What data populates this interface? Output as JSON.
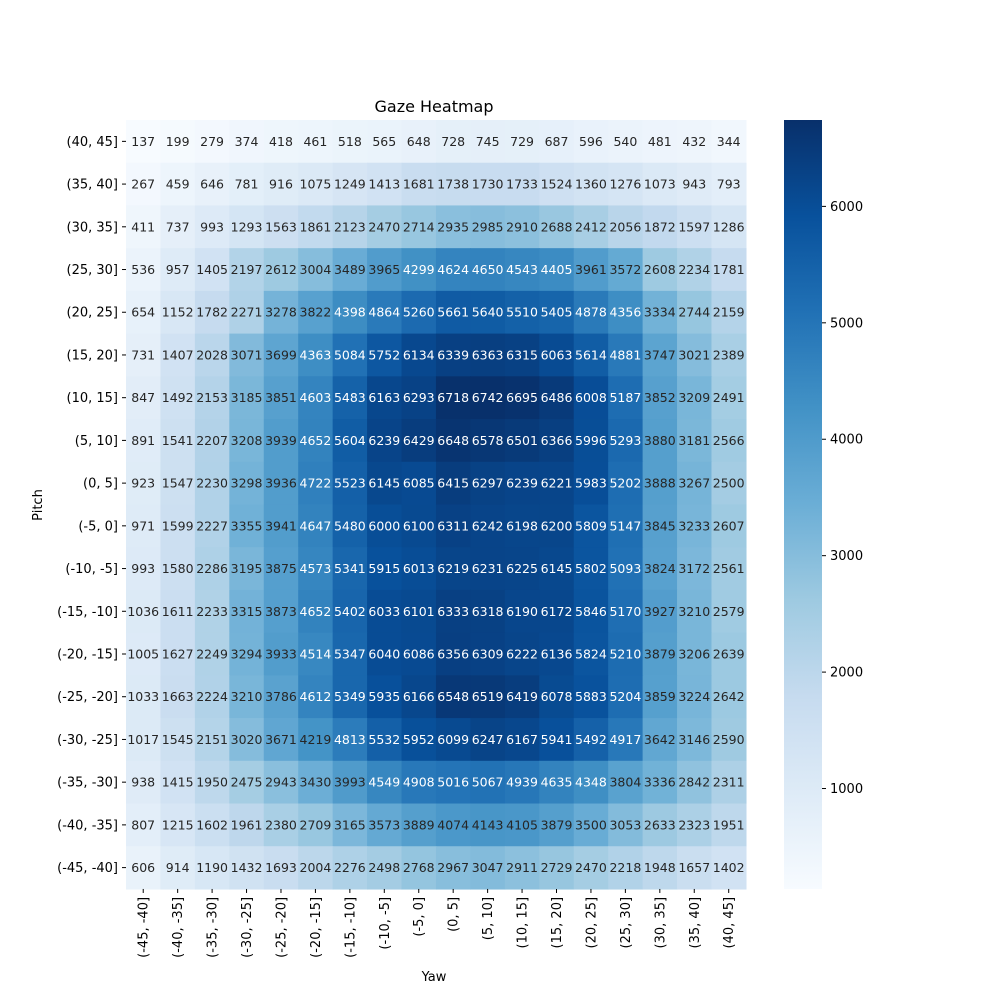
{
  "chart_data": {
    "type": "heatmap",
    "title": "Gaze Heatmap",
    "xlabel": "Yaw",
    "ylabel": "Pitch",
    "x_categories": [
      "(-45, -40]",
      "(-40, -35]",
      "(-35, -30]",
      "(-30, -25]",
      "(-25, -20]",
      "(-20, -15]",
      "(-15, -10]",
      "(-10, -5]",
      "(-5, 0]",
      "(0, 5]",
      "(5, 10]",
      "(10, 15]",
      "(15, 20]",
      "(20, 25]",
      "(25, 30]",
      "(30, 35]",
      "(35, 40]",
      "(40, 45]"
    ],
    "y_categories": [
      "(40, 45]",
      "(35, 40]",
      "(30, 35]",
      "(25, 30]",
      "(20, 25]",
      "(15, 20]",
      "(10, 15]",
      "(5, 10]",
      "(0, 5]",
      "(-5, 0]",
      "(-10, -5]",
      "(-15, -10]",
      "(-20, -15]",
      "(-25, -20]",
      "(-30, -25]",
      "(-35, -30]",
      "(-40, -35]",
      "(-45, -40]"
    ],
    "values": [
      [
        137,
        199,
        279,
        374,
        418,
        461,
        518,
        565,
        648,
        728,
        745,
        729,
        687,
        596,
        540,
        481,
        432,
        344
      ],
      [
        267,
        459,
        646,
        781,
        916,
        1075,
        1249,
        1413,
        1681,
        1738,
        1730,
        1733,
        1524,
        1360,
        1276,
        1073,
        943,
        793
      ],
      [
        411,
        737,
        993,
        1293,
        1563,
        1861,
        2123,
        2470,
        2714,
        2935,
        2985,
        2910,
        2688,
        2412,
        2056,
        1872,
        1597,
        1286
      ],
      [
        536,
        957,
        1405,
        2197,
        2612,
        3004,
        3489,
        3965,
        4299,
        4624,
        4650,
        4543,
        4405,
        3961,
        3572,
        2608,
        2234,
        1781
      ],
      [
        654,
        1152,
        1782,
        2271,
        3278,
        3822,
        4398,
        4864,
        5260,
        5661,
        5640,
        5510,
        5405,
        4878,
        4356,
        3334,
        2744,
        2159
      ],
      [
        731,
        1407,
        2028,
        3071,
        3699,
        4363,
        5084,
        5752,
        6134,
        6339,
        6363,
        6315,
        6063,
        5614,
        4881,
        3747,
        3021,
        2389
      ],
      [
        847,
        1492,
        2153,
        3185,
        3851,
        4603,
        5483,
        6163,
        6293,
        6718,
        6742,
        6695,
        6486,
        6008,
        5187,
        3852,
        3209,
        2491
      ],
      [
        891,
        1541,
        2207,
        3208,
        3939,
        4652,
        5604,
        6239,
        6429,
        6648,
        6578,
        6501,
        6366,
        5996,
        5293,
        3880,
        3181,
        2566
      ],
      [
        923,
        1547,
        2230,
        3298,
        3936,
        4722,
        5523,
        6145,
        6085,
        6415,
        6297,
        6239,
        6221,
        5983,
        5202,
        3888,
        3267,
        2500
      ],
      [
        971,
        1599,
        2227,
        3355,
        3941,
        4647,
        5480,
        6000,
        6100,
        6311,
        6242,
        6198,
        6200,
        5809,
        5147,
        3845,
        3233,
        2607
      ],
      [
        993,
        1580,
        2286,
        3195,
        3875,
        4573,
        5341,
        5915,
        6013,
        6219,
        6231,
        6225,
        6145,
        5802,
        5093,
        3824,
        3172,
        2561
      ],
      [
        1036,
        1611,
        2233,
        3315,
        3873,
        4652,
        5402,
        6033,
        6101,
        6333,
        6318,
        6190,
        6172,
        5846,
        5170,
        3927,
        3210,
        2579
      ],
      [
        1005,
        1627,
        2249,
        3294,
        3933,
        4514,
        5347,
        6040,
        6086,
        6356,
        6309,
        6222,
        6136,
        5824,
        5210,
        3879,
        3206,
        2639
      ],
      [
        1033,
        1663,
        2224,
        3210,
        3786,
        4612,
        5349,
        5935,
        6166,
        6548,
        6519,
        6419,
        6078,
        5883,
        5204,
        3859,
        3224,
        2642
      ],
      [
        1017,
        1545,
        2151,
        3020,
        3671,
        4219,
        4813,
        5532,
        5952,
        6099,
        6247,
        6167,
        5941,
        5492,
        4917,
        3642,
        3146,
        2590
      ],
      [
        938,
        1415,
        1950,
        2475,
        2943,
        3430,
        3993,
        4549,
        4908,
        5016,
        5067,
        4939,
        4635,
        4348,
        3804,
        3336,
        2842,
        2311
      ],
      [
        807,
        1215,
        1602,
        1961,
        2380,
        2709,
        3165,
        3573,
        3889,
        4074,
        4143,
        4105,
        3879,
        3500,
        3053,
        2633,
        2323,
        1951
      ],
      [
        606,
        914,
        1190,
        1432,
        1693,
        2004,
        2276,
        2498,
        2768,
        2967,
        3047,
        2911,
        2729,
        2470,
        2218,
        1948,
        1657,
        1402
      ]
    ],
    "colormap": "Blues",
    "vmin": 137,
    "vmax": 6742,
    "colorbar_ticks": [
      1000,
      2000,
      3000,
      4000,
      5000,
      6000
    ],
    "annotations": true
  }
}
